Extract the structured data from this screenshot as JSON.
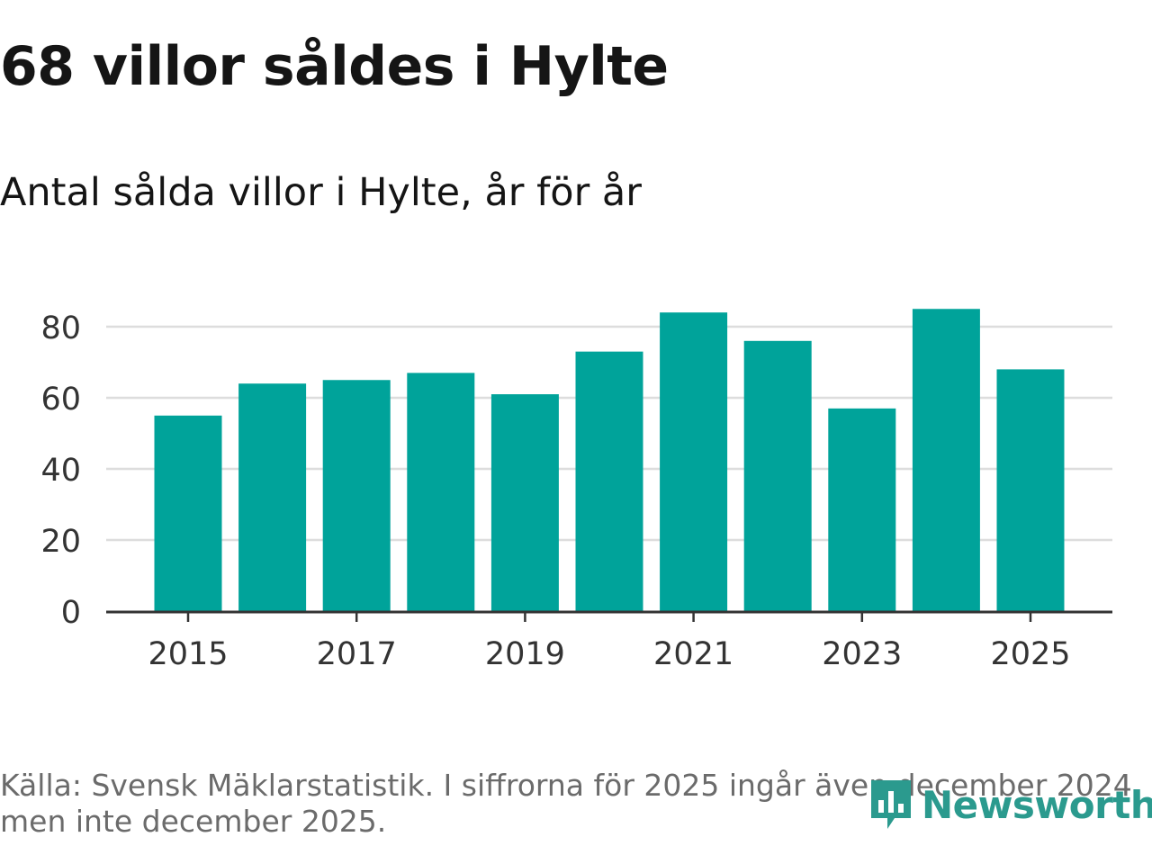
{
  "header": {
    "title": "68 villor såldes i Hylte",
    "subtitle": "Antal sålda villor i Hylte, år för år"
  },
  "footer": {
    "source_line1": "Källa: Svensk Mäklarstatistik. I siffrorna för 2025 ingår även december 2024,",
    "source_line2": "men inte december 2025.",
    "brand": "Newsworthy"
  },
  "colors": {
    "bar": "#00a39a",
    "grid": "#dddddd",
    "axis": "#333333",
    "brand": "#2b9a8e"
  },
  "chart_data": {
    "type": "bar",
    "title": "Antal sålda villor i Hylte, år för år",
    "xlabel": "",
    "ylabel": "",
    "categories": [
      "2015",
      "2016",
      "2017",
      "2018",
      "2019",
      "2020",
      "2021",
      "2022",
      "2023",
      "2024",
      "2025"
    ],
    "values": [
      55,
      64,
      65,
      67,
      61,
      73,
      84,
      76,
      57,
      85,
      68
    ],
    "xticks": [
      "2015",
      "2017",
      "2019",
      "2021",
      "2023",
      "2025"
    ],
    "yticks": [
      0,
      20,
      40,
      60,
      80
    ],
    "ylim": [
      0,
      88
    ],
    "grid": true,
    "legend": "none"
  }
}
